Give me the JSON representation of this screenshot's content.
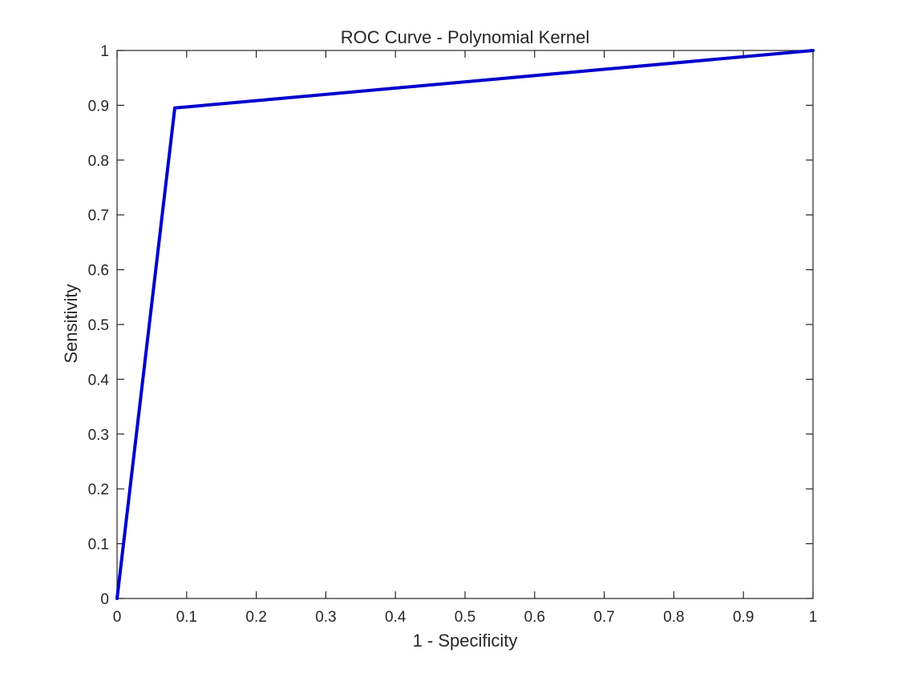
{
  "chart_data": {
    "type": "line",
    "title": "ROC Curve - Polynomial Kernel",
    "xlabel": "1 - Specificity",
    "ylabel": "Sensitivity",
    "xlim": [
      0,
      1
    ],
    "ylim": [
      0,
      1
    ],
    "grid": false,
    "legend": "none",
    "x_ticks": [
      "0",
      "0.1",
      "0.2",
      "0.3",
      "0.4",
      "0.5",
      "0.6",
      "0.7",
      "0.8",
      "0.9",
      "1"
    ],
    "y_ticks": [
      "0",
      "0.1",
      "0.2",
      "0.3",
      "0.4",
      "0.5",
      "0.6",
      "0.7",
      "0.8",
      "0.9",
      "1"
    ],
    "series": [
      {
        "color": "#0000cc",
        "x": [
          0,
          0.083,
          1
        ],
        "y": [
          0,
          0.895,
          1
        ]
      }
    ],
    "colors": {
      "axis": "#262626",
      "line": "#0000cc",
      "background": "#ffffff"
    }
  }
}
